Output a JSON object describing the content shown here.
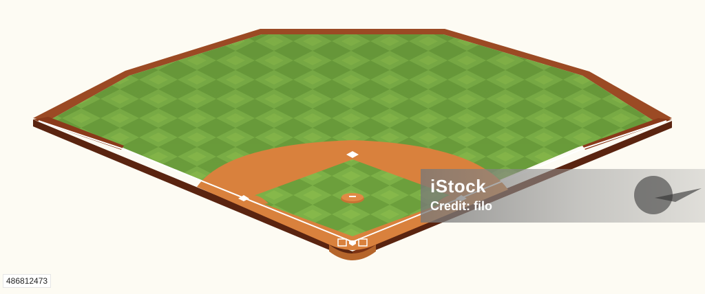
{
  "image": {
    "subject": "isometric baseball field",
    "colors": {
      "background": "#fdfbf3",
      "grass_light": "#86b84a",
      "grass_dark": "#6a9f3a",
      "wall": "#8e3f1e",
      "wall_side": "#5a2410",
      "dirt": "#d9813d",
      "chalk": "#ffffff"
    }
  },
  "watermark": {
    "brand": "iStock",
    "credit": "Credit: filo"
  },
  "stock_id": "486812473"
}
